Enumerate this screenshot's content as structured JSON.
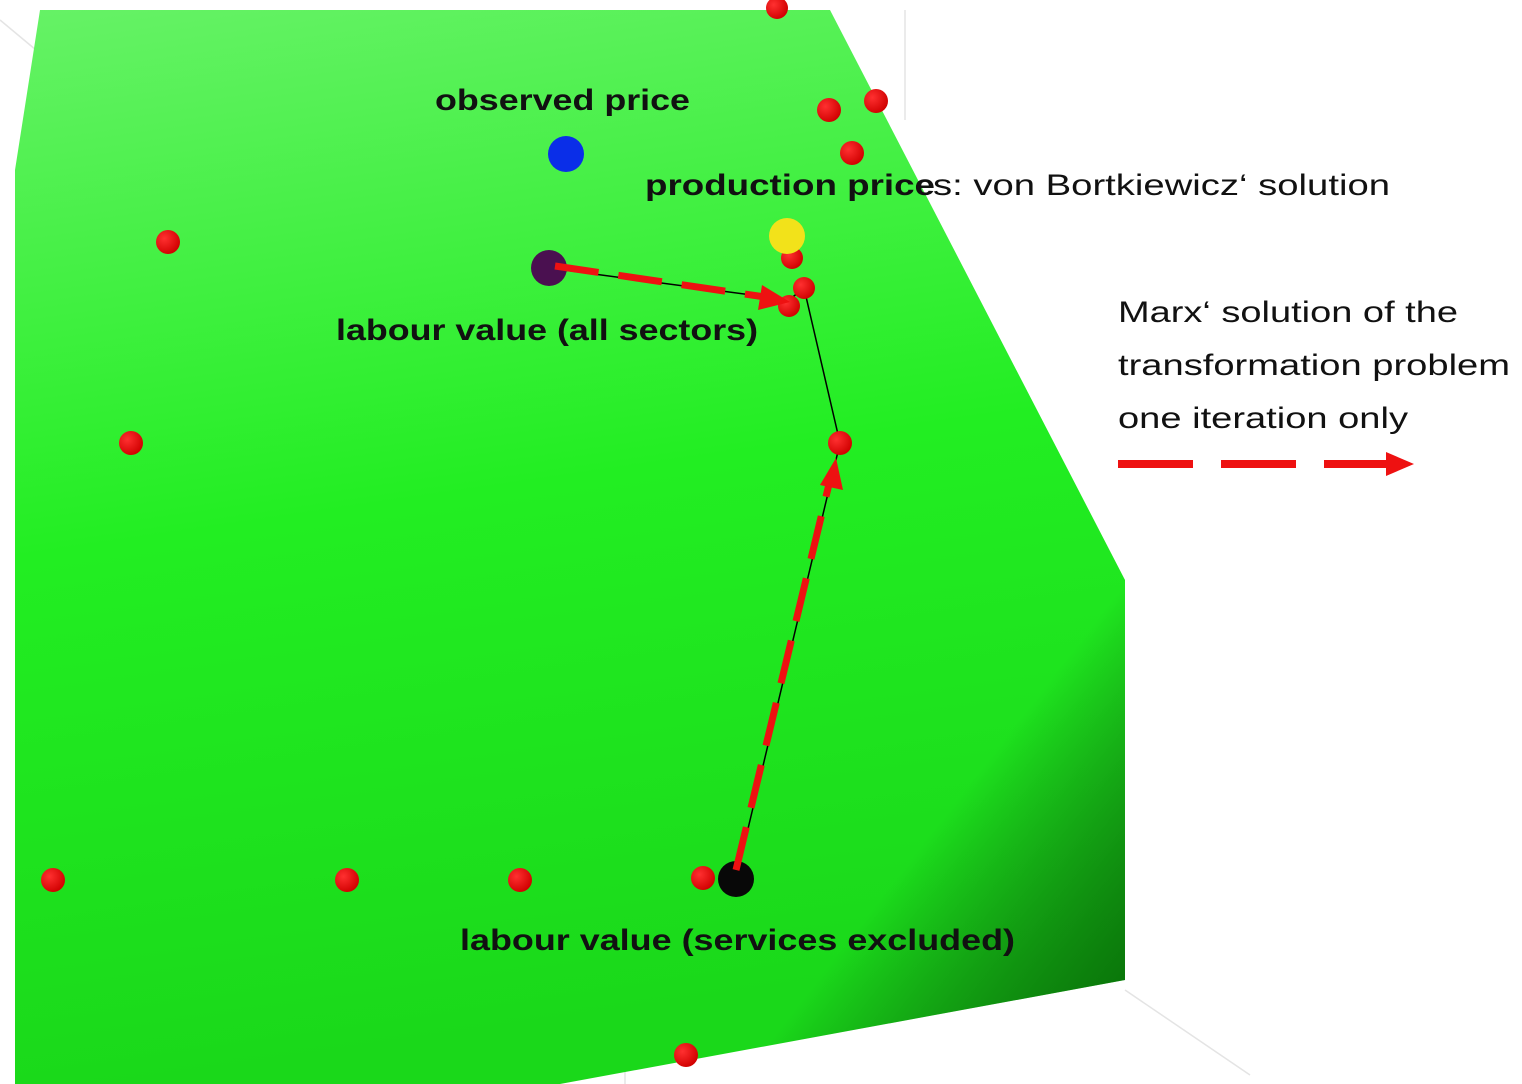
{
  "labels": {
    "observed_price": "observed price",
    "production_prices": "production price",
    "production_prices_rest": "s: von Bortkiewicz‘ solution",
    "labour_value_all": "labour value (all sectors)",
    "labour_value_services": "labour value (services excluded)"
  },
  "legend": {
    "lines": [
      "Marx‘ solution of the",
      "transformation problem",
      "one iteration only"
    ]
  }
}
